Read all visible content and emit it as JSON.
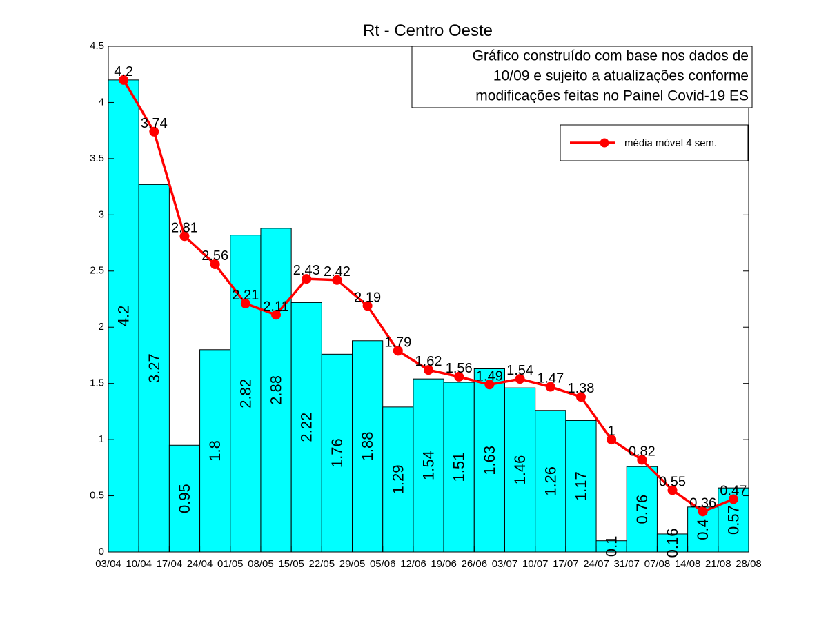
{
  "chart_data": {
    "type": "bar",
    "title": "Rt - Centro Oeste",
    "annotation": [
      "Gráfico construído com base nos dados de",
      "10/09 e sujeito a atualizações conforme",
      "modificações feitas no Painel Covid-19 ES"
    ],
    "x": [
      0.5,
      1.5,
      2.5,
      3.5,
      4.5,
      5.5,
      6.5,
      7.5,
      8.5,
      9.5,
      10.5,
      11.5,
      12.5,
      13.5,
      14.5,
      15.5,
      16.5,
      17.5,
      18.5,
      19.5,
      20.5
    ],
    "series": [
      {
        "type": "bar",
        "color": "#00ffff",
        "values": [
          4.2,
          3.27,
          0.95,
          1.8,
          2.82,
          2.88,
          2.22,
          1.76,
          1.88,
          1.29,
          1.54,
          1.51,
          1.63,
          1.46,
          1.26,
          1.17,
          0.1,
          0.76,
          0.16,
          0.4,
          0.57
        ]
      },
      {
        "type": "line",
        "name": "média móvel 4 sem.",
        "color": "#ff0000",
        "values": [
          4.2,
          3.74,
          2.81,
          2.56,
          2.21,
          2.11,
          2.43,
          2.42,
          2.19,
          1.79,
          1.62,
          1.56,
          1.49,
          1.54,
          1.47,
          1.38,
          1,
          0.82,
          0.55,
          0.36,
          0.47
        ]
      }
    ],
    "xlim": [
      0,
      21
    ],
    "xticks": [
      {
        "value": 0,
        "label": "03/04"
      },
      {
        "value": 1,
        "label": "10/04"
      },
      {
        "value": 2,
        "label": "17/04"
      },
      {
        "value": 3,
        "label": "24/04"
      },
      {
        "value": 4,
        "label": "01/05"
      },
      {
        "value": 5,
        "label": "08/05"
      },
      {
        "value": 6,
        "label": "15/05"
      },
      {
        "value": 7,
        "label": "22/05"
      },
      {
        "value": 8,
        "label": "29/05"
      },
      {
        "value": 9,
        "label": "05/06"
      },
      {
        "value": 10,
        "label": "12/06"
      },
      {
        "value": 11,
        "label": "19/06"
      },
      {
        "value": 12,
        "label": "26/06"
      },
      {
        "value": 13,
        "label": "03/07"
      },
      {
        "value": 14,
        "label": "10/07"
      },
      {
        "value": 15,
        "label": "17/07"
      },
      {
        "value": 16,
        "label": "24/07"
      },
      {
        "value": 17,
        "label": "31/07"
      },
      {
        "value": 18,
        "label": "07/08"
      },
      {
        "value": 19,
        "label": "14/08"
      },
      {
        "value": 20,
        "label": "21/08"
      },
      {
        "value": 21,
        "label": "28/08"
      }
    ],
    "ylim": [
      0,
      4.5
    ],
    "yticks": [
      0,
      0.5,
      1,
      1.5,
      2,
      2.5,
      3,
      3.5,
      4,
      4.5
    ],
    "legend": "upper right",
    "grid": false
  }
}
